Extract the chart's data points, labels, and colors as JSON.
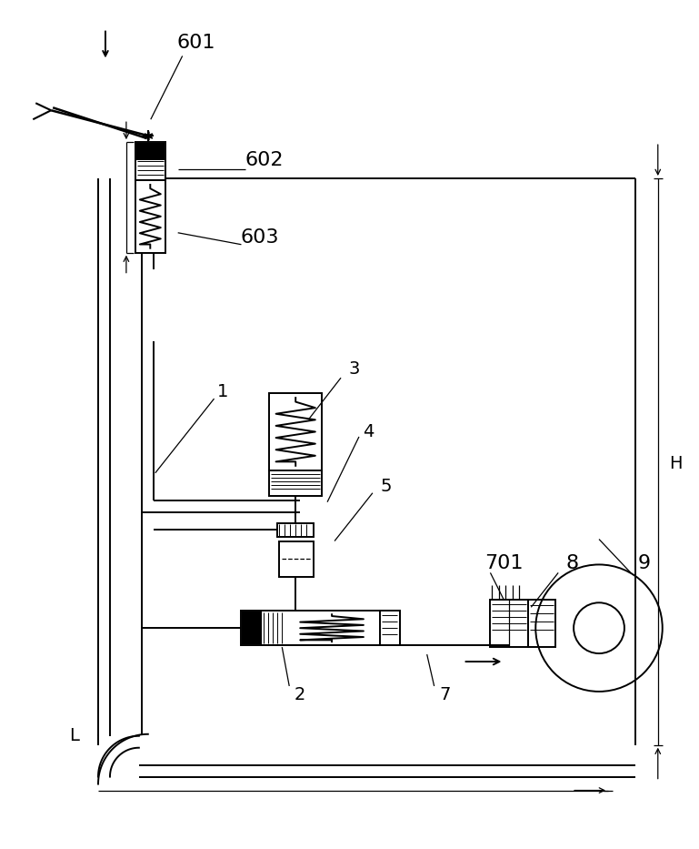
{
  "bg_color": "#ffffff",
  "line_color": "#000000",
  "fig_width": 7.69,
  "fig_height": 9.33,
  "dpi": 100
}
